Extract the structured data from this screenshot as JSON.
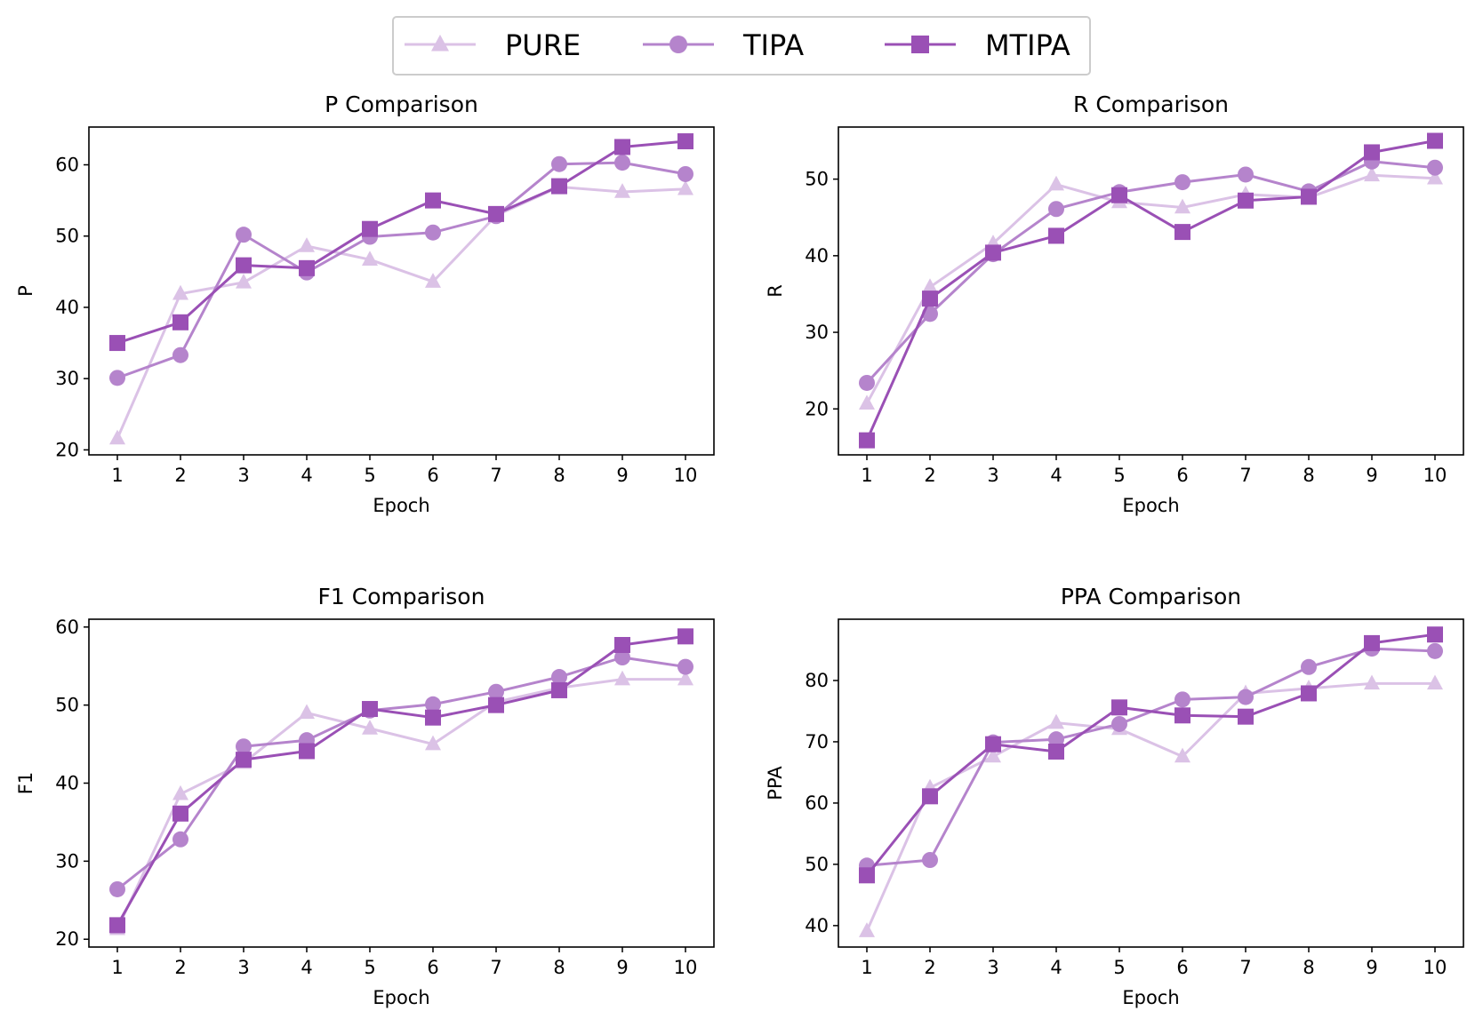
{
  "chart_data": [
    {
      "type": "line",
      "title": "P Comparison",
      "xlabel": "Epoch",
      "ylabel": "P",
      "x": [
        1,
        2,
        3,
        4,
        5,
        6,
        7,
        8,
        9,
        10
      ],
      "ylim": [
        19.3,
        65.3
      ],
      "yticks": [
        20,
        30,
        40,
        50,
        60
      ],
      "series": [
        {
          "name": "PURE",
          "values": [
            21.6,
            41.9,
            43.5,
            48.6,
            46.7,
            43.6,
            52.9,
            56.9,
            56.2,
            56.6
          ]
        },
        {
          "name": "TIPA",
          "values": [
            30.1,
            33.3,
            50.2,
            44.9,
            49.9,
            50.5,
            52.8,
            60.1,
            60.3,
            58.7
          ]
        },
        {
          "name": "MTIPA",
          "values": [
            35.0,
            37.9,
            45.9,
            45.5,
            51.0,
            55.0,
            53.1,
            57.0,
            62.5,
            63.3
          ]
        }
      ]
    },
    {
      "type": "line",
      "title": "R Comparison",
      "xlabel": "Epoch",
      "ylabel": "R",
      "x": [
        1,
        2,
        3,
        4,
        5,
        6,
        7,
        8,
        9,
        10
      ],
      "ylim": [
        14.0,
        56.8
      ],
      "yticks": [
        20,
        30,
        40,
        50
      ],
      "series": [
        {
          "name": "PURE",
          "values": [
            20.7,
            35.9,
            41.6,
            49.3,
            47.0,
            46.3,
            48.0,
            47.6,
            50.5,
            50.1
          ]
        },
        {
          "name": "TIPA",
          "values": [
            23.4,
            32.4,
            40.2,
            46.1,
            48.3,
            49.6,
            50.6,
            48.4,
            52.3,
            51.5
          ]
        },
        {
          "name": "MTIPA",
          "values": [
            15.9,
            34.4,
            40.4,
            42.6,
            47.9,
            43.1,
            47.2,
            47.7,
            53.5,
            55.0
          ]
        }
      ]
    },
    {
      "type": "line",
      "title": "F1 Comparison",
      "xlabel": "Epoch",
      "ylabel": "F1",
      "x": [
        1,
        2,
        3,
        4,
        5,
        6,
        7,
        8,
        9,
        10
      ],
      "ylim": [
        19.0,
        61.0
      ],
      "yticks": [
        20,
        30,
        40,
        50,
        60
      ],
      "series": [
        {
          "name": "PURE",
          "values": [
            21.3,
            38.6,
            42.6,
            49.0,
            47.0,
            45.0,
            50.4,
            52.2,
            53.3,
            53.3
          ]
        },
        {
          "name": "TIPA",
          "values": [
            26.4,
            32.8,
            44.7,
            45.5,
            49.3,
            50.1,
            51.7,
            53.6,
            56.1,
            54.9
          ]
        },
        {
          "name": "MTIPA",
          "values": [
            21.8,
            36.1,
            43.0,
            44.1,
            49.5,
            48.4,
            50.0,
            51.9,
            57.7,
            58.8
          ]
        }
      ]
    },
    {
      "type": "line",
      "title": "PPA Comparison",
      "xlabel": "Epoch",
      "ylabel": "PPA",
      "x": [
        1,
        2,
        3,
        4,
        5,
        6,
        7,
        8,
        9,
        10
      ],
      "ylim": [
        36.5,
        90.0
      ],
      "yticks": [
        40,
        50,
        60,
        70,
        80
      ],
      "series": [
        {
          "name": "PURE",
          "values": [
            39.1,
            62.5,
            67.6,
            73.1,
            72.1,
            67.6,
            77.9,
            78.7,
            79.5,
            79.5
          ]
        },
        {
          "name": "TIPA",
          "values": [
            49.8,
            50.7,
            69.9,
            70.4,
            72.9,
            76.9,
            77.3,
            82.2,
            85.2,
            84.8
          ]
        },
        {
          "name": "MTIPA",
          "values": [
            48.2,
            61.1,
            69.6,
            68.4,
            75.6,
            74.3,
            74.1,
            77.9,
            86.1,
            87.5
          ]
        }
      ]
    }
  ],
  "legend": {
    "position": "top-center",
    "items": [
      {
        "name": "PURE",
        "marker": "triangle",
        "color": "#dbc2e6"
      },
      {
        "name": "TIPA",
        "marker": "circle",
        "color": "#b584cc"
      },
      {
        "name": "MTIPA",
        "marker": "square",
        "color": "#9a50b5"
      }
    ]
  },
  "colors": {
    "PURE": "#dbc2e6",
    "TIPA": "#b584cc",
    "MTIPA": "#9a50b5",
    "axis": "#000000",
    "legend_border": "#cccccc"
  }
}
